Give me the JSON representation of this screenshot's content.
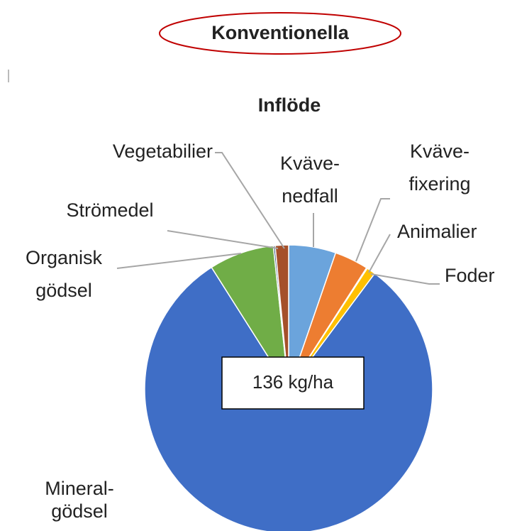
{
  "header": {
    "title": "Konventionella"
  },
  "chart_data": {
    "type": "pie",
    "title": "Inflöde",
    "categories": [
      "Kväve-\nnedfall",
      "Kväve-\nfixering",
      "Animalier",
      "Foder",
      "Mineral-\ngödsel",
      "Organisk\ngödsel",
      "Strömedel",
      "Vegetabilier"
    ],
    "values": [
      5.3,
      3.8,
      0.1,
      1.0,
      80.8,
      7.3,
      0.2,
      1.5
    ],
    "colors": [
      "#6ba4dc",
      "#ed7d31",
      "#a5a5a5",
      "#ffc000",
      "#3f6ec6",
      "#70ad47",
      "#264478",
      "#a5502a"
    ],
    "annotation": "136 kg/ha"
  }
}
